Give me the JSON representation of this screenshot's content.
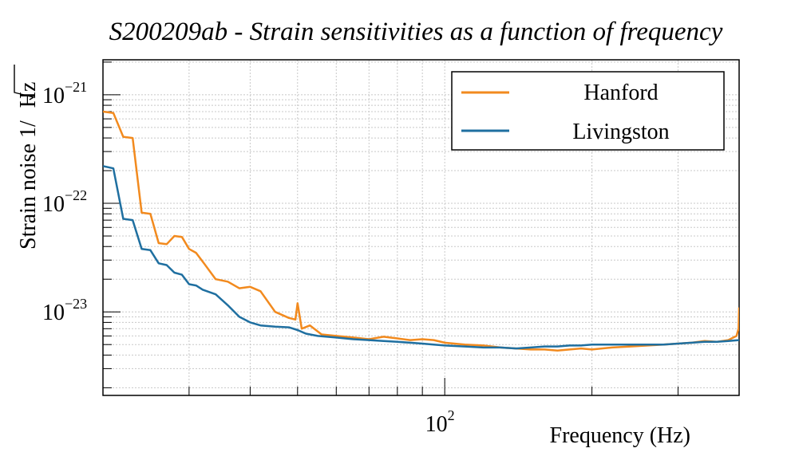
{
  "chart_data": {
    "type": "line",
    "title": "S200209ab - Strain sensitivities as a function of frequency",
    "xlabel": "Frequency (Hz)",
    "ylabel_main": "Strain noise 1/",
    "ylabel_sqrt_arg": "Hz",
    "x_scale": "log",
    "y_scale": "log",
    "xlim": [
      20,
      400
    ],
    "ylim": [
      1.7e-24,
      2.1e-21
    ],
    "grid": true,
    "legend_position": "top-right",
    "x_tick_labels": [
      {
        "value": 100,
        "base": "10",
        "exp": "2"
      }
    ],
    "y_tick_labels": [
      {
        "value": 1e-21,
        "base": "10",
        "exp": "−21"
      },
      {
        "value": 1e-22,
        "base": "10",
        "exp": "−22"
      },
      {
        "value": 1e-23,
        "base": "10",
        "exp": "−23"
      }
    ],
    "series": [
      {
        "name": "Hanford",
        "color": "#f28a1e",
        "x": [
          20,
          21,
          22,
          23,
          24,
          25,
          26,
          27,
          28,
          29,
          30,
          31,
          32,
          34,
          36,
          38,
          40,
          42,
          45,
          48,
          49.5,
          50,
          51,
          53,
          56,
          60,
          65,
          70,
          75,
          80,
          85,
          90,
          95,
          100,
          110,
          120,
          130,
          140,
          150,
          160,
          170,
          180,
          190,
          200,
          220,
          240,
          260,
          280,
          300,
          320,
          340,
          360,
          380,
          395,
          399,
          400
        ],
        "y": [
          7e-22,
          6.8e-22,
          4.1e-22,
          4e-22,
          8.2e-23,
          8e-23,
          4.3e-23,
          4.2e-23,
          5e-23,
          4.9e-23,
          3.8e-23,
          3.5e-23,
          2.9e-23,
          2e-23,
          1.9e-23,
          1.65e-23,
          1.7e-23,
          1.55e-23,
          1e-23,
          8.8e-24,
          8.5e-24,
          1.2e-23,
          7e-24,
          7.5e-24,
          6.2e-24,
          6e-24,
          5.8e-24,
          5.6e-24,
          5.9e-24,
          5.7e-24,
          5.5e-24,
          5.6e-24,
          5.5e-24,
          5.2e-24,
          5e-24,
          4.9e-24,
          4.7e-24,
          4.6e-24,
          4.5e-24,
          4.5e-24,
          4.4e-24,
          4.5e-24,
          4.6e-24,
          4.5e-24,
          4.7e-24,
          4.8e-24,
          4.9e-24,
          5e-24,
          5.1e-24,
          5.2e-24,
          5.4e-24,
          5.3e-24,
          5.5e-24,
          6e-24,
          7e-24,
          1.1e-23
        ]
      },
      {
        "name": "Livingston",
        "color": "#1f6fa0",
        "x": [
          20,
          21,
          22,
          23,
          24,
          25,
          26,
          27,
          28,
          29,
          30,
          31,
          32,
          34,
          36,
          38,
          40,
          42,
          45,
          48,
          50,
          52,
          55,
          60,
          65,
          70,
          75,
          80,
          85,
          90,
          95,
          100,
          110,
          120,
          130,
          140,
          150,
          160,
          170,
          180,
          190,
          200,
          220,
          240,
          260,
          280,
          300,
          320,
          340,
          360,
          380,
          400
        ],
        "y": [
          2.2e-22,
          2.1e-22,
          7.2e-23,
          7e-23,
          3.8e-23,
          3.7e-23,
          2.8e-23,
          2.7e-23,
          2.3e-23,
          2.2e-23,
          1.8e-23,
          1.75e-23,
          1.6e-23,
          1.45e-23,
          1.15e-23,
          9e-24,
          8e-24,
          7.5e-24,
          7.3e-24,
          7.2e-24,
          6.8e-24,
          6.3e-24,
          6e-24,
          5.8e-24,
          5.6e-24,
          5.5e-24,
          5.4e-24,
          5.3e-24,
          5.2e-24,
          5.1e-24,
          5e-24,
          4.9e-24,
          4.8e-24,
          4.7e-24,
          4.7e-24,
          4.6e-24,
          4.7e-24,
          4.8e-24,
          4.8e-24,
          4.9e-24,
          4.9e-24,
          5e-24,
          5e-24,
          5e-24,
          5e-24,
          5e-24,
          5.1e-24,
          5.2e-24,
          5.3e-24,
          5.3e-24,
          5.4e-24,
          5.5e-24
        ]
      }
    ]
  }
}
